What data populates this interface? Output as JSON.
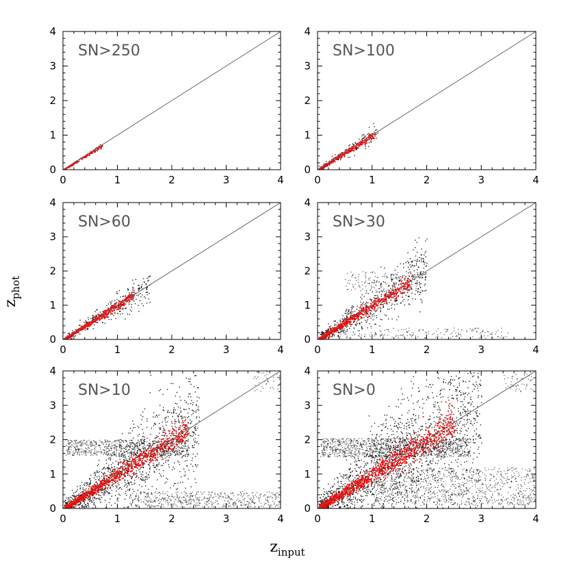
{
  "figure": {
    "xlabel": "z",
    "xlabel_sub": "input",
    "ylabel": "z",
    "ylabel_sub": "phot"
  },
  "colors": {
    "background": "#ffffff",
    "frame": "#000000",
    "one_to_one_line": "#666666",
    "dense_points": "#ff0000",
    "scatter_points": "#000000",
    "panel_label": "#555555"
  },
  "chart_data": [
    {
      "type": "scatter",
      "panel": "SN>250",
      "xlim": [
        0,
        4
      ],
      "ylim": [
        0,
        4
      ],
      "xticks": [
        0,
        1,
        2,
        3,
        4
      ],
      "yticks": [
        0,
        1,
        2,
        3,
        4
      ],
      "reference_line": {
        "x": [
          0,
          4
        ],
        "y": [
          0,
          4
        ]
      },
      "dense_points": {
        "x_range": [
          0.02,
          0.72
        ],
        "y_scatter": 0.03,
        "count": 120
      },
      "scatter_points": {
        "x_range": [
          0.02,
          0.72
        ],
        "y_scatter": 0.04,
        "count": 40
      },
      "outliers": []
    },
    {
      "type": "scatter",
      "panel": "SN>100",
      "xlim": [
        0,
        4
      ],
      "ylim": [
        0,
        4
      ],
      "xticks": [
        0,
        1,
        2,
        3,
        4
      ],
      "yticks": [
        0,
        1,
        2,
        3,
        4
      ],
      "reference_line": {
        "x": [
          0,
          4
        ],
        "y": [
          0,
          4
        ]
      },
      "dense_points": {
        "x_range": [
          0.02,
          1.05
        ],
        "y_scatter": 0.05,
        "count": 300
      },
      "scatter_points": {
        "x_range": [
          0.02,
          1.1
        ],
        "y_scatter": 0.08,
        "count": 180
      },
      "outliers": []
    },
    {
      "type": "scatter",
      "panel": "SN>60",
      "xlim": [
        0,
        4
      ],
      "ylim": [
        0,
        4
      ],
      "xticks": [
        0,
        1,
        2,
        3,
        4
      ],
      "yticks": [
        0,
        1,
        2,
        3,
        4
      ],
      "reference_line": {
        "x": [
          0,
          4
        ],
        "y": [
          0,
          4
        ]
      },
      "dense_points": {
        "x_range": [
          0.02,
          1.3
        ],
        "y_scatter": 0.06,
        "count": 450
      },
      "scatter_points": {
        "x_range": [
          0.02,
          1.6
        ],
        "y_scatter": 0.12,
        "count": 320
      },
      "outliers": []
    },
    {
      "type": "scatter",
      "panel": "SN>30",
      "xlim": [
        0,
        4
      ],
      "ylim": [
        0,
        4
      ],
      "xticks": [
        0,
        1,
        2,
        3,
        4
      ],
      "yticks": [
        0,
        1,
        2,
        3,
        4
      ],
      "reference_line": {
        "x": [
          0,
          4
        ],
        "y": [
          0,
          4
        ]
      },
      "dense_points": {
        "x_range": [
          0.02,
          1.7
        ],
        "y_scatter": 0.08,
        "count": 600
      },
      "scatter_points": {
        "x_range": [
          0.02,
          2.0
        ],
        "y_scatter": 0.2,
        "count": 700
      },
      "outliers": [
        {
          "x_range": [
            0.5,
            2.0
          ],
          "y_range": [
            1.4,
            2.0
          ],
          "count": 150
        },
        {
          "x_range": [
            0.3,
            3.5
          ],
          "y_range": [
            0.05,
            0.35
          ],
          "count": 180
        }
      ]
    },
    {
      "type": "scatter",
      "panel": "SN>10",
      "xlim": [
        0,
        4
      ],
      "ylim": [
        0,
        4
      ],
      "xticks": [
        0,
        1,
        2,
        3,
        4
      ],
      "yticks": [
        0,
        1,
        2,
        3,
        4
      ],
      "reference_line": {
        "x": [
          0,
          4
        ],
        "y": [
          0,
          4
        ]
      },
      "dense_points": {
        "x_range": [
          0.02,
          2.3
        ],
        "y_scatter": 0.1,
        "count": 900
      },
      "scatter_points": {
        "x_range": [
          0.02,
          2.5
        ],
        "y_scatter": 0.3,
        "count": 1400
      },
      "outliers": [
        {
          "x_range": [
            0.05,
            2.3
          ],
          "y_range": [
            1.55,
            2.0
          ],
          "count": 700
        },
        {
          "x_range": [
            1.2,
            4.0
          ],
          "y_range": [
            0.05,
            0.5
          ],
          "count": 500
        },
        {
          "x_range": [
            3.5,
            4.0
          ],
          "y_range": [
            3.4,
            4.0
          ],
          "count": 40
        }
      ]
    },
    {
      "type": "scatter",
      "panel": "SN>0",
      "xlim": [
        0,
        4
      ],
      "ylim": [
        0,
        4
      ],
      "xticks": [
        0,
        1,
        2,
        3,
        4
      ],
      "yticks": [
        0,
        1,
        2,
        3,
        4
      ],
      "reference_line": {
        "x": [
          0,
          4
        ],
        "y": [
          0,
          4
        ]
      },
      "dense_points": {
        "x_range": [
          0.02,
          2.5
        ],
        "y_scatter": 0.12,
        "count": 1000
      },
      "scatter_points": {
        "x_range": [
          0.02,
          3.0
        ],
        "y_scatter": 0.4,
        "count": 1800
      },
      "outliers": [
        {
          "x_range": [
            0.05,
            2.8
          ],
          "y_range": [
            1.5,
            2.05
          ],
          "count": 1100
        },
        {
          "x_range": [
            1.0,
            4.0
          ],
          "y_range": [
            0.1,
            1.2
          ],
          "count": 1000
        },
        {
          "x_range": [
            3.4,
            4.0
          ],
          "y_range": [
            3.4,
            4.0
          ],
          "count": 50
        }
      ]
    }
  ]
}
